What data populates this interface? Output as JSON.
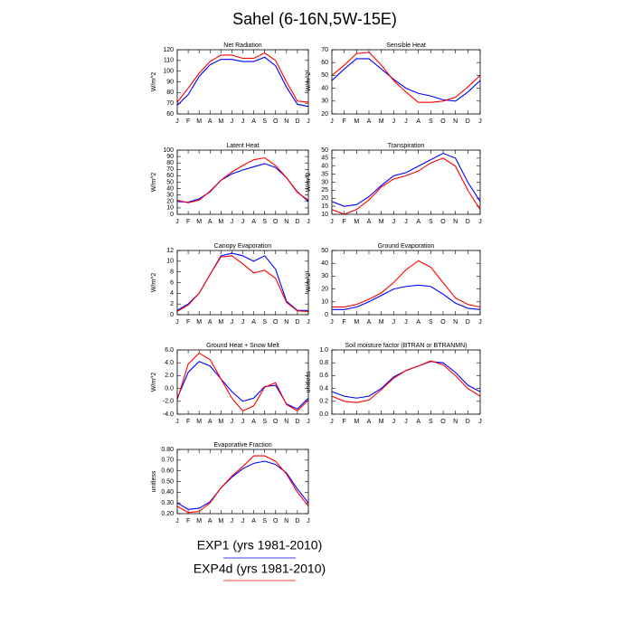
{
  "title": "Sahel (6-16N,5W-15E)",
  "legend": [
    {
      "label": "EXP1 (yrs 1981-2010)",
      "color": "#0000ff"
    },
    {
      "label": "EXP4d (yrs 1981-2010)",
      "color": "#ff0000"
    }
  ],
  "chart_data": [
    {
      "type": "line",
      "title": "Net Radiation",
      "y_label": "W/m^2",
      "categories": [
        "J",
        "F",
        "M",
        "A",
        "M",
        "J",
        "J",
        "A",
        "S",
        "O",
        "N",
        "D",
        "J"
      ],
      "ylim": [
        60,
        120
      ],
      "yticks": [
        60,
        70,
        80,
        90,
        100,
        110,
        120
      ],
      "series": [
        {
          "color": "#0000ff",
          "values": [
            68,
            78,
            95,
            106,
            111,
            111,
            109,
            109,
            113,
            105,
            85,
            69,
            67
          ]
        },
        {
          "color": "#ff0000",
          "values": [
            71,
            84,
            98,
            109,
            115,
            115,
            112,
            112,
            117,
            110,
            90,
            72,
            71
          ]
        }
      ]
    },
    {
      "type": "line",
      "title": "Sensible Heat",
      "y_label": "W/m^2",
      "categories": [
        "J",
        "F",
        "M",
        "A",
        "M",
        "J",
        "J",
        "A",
        "S",
        "O",
        "N",
        "D",
        "J"
      ],
      "ylim": [
        20,
        70
      ],
      "yticks": [
        20,
        30,
        40,
        50,
        60,
        70
      ],
      "series": [
        {
          "color": "#0000ff",
          "values": [
            46,
            55,
            63,
            63,
            55,
            47,
            40,
            36,
            34,
            31,
            30,
            37,
            46
          ]
        },
        {
          "color": "#ff0000",
          "values": [
            50,
            58,
            67,
            68,
            58,
            46,
            37,
            29,
            29,
            30,
            33,
            41,
            50
          ]
        }
      ]
    },
    {
      "type": "line",
      "title": "Latent Heat",
      "y_label": "W/m^2",
      "categories": [
        "J",
        "F",
        "M",
        "A",
        "M",
        "J",
        "J",
        "A",
        "S",
        "O",
        "N",
        "D",
        "J"
      ],
      "ylim": [
        0,
        100
      ],
      "yticks": [
        0,
        10,
        20,
        30,
        40,
        50,
        60,
        70,
        80,
        90,
        100
      ],
      "series": [
        {
          "color": "#0000ff",
          "values": [
            20,
            19,
            24,
            35,
            53,
            63,
            69,
            74,
            79,
            73,
            57,
            35,
            20
          ]
        },
        {
          "color": "#ff0000",
          "values": [
            22,
            18,
            22,
            36,
            53,
            66,
            76,
            85,
            88,
            76,
            57,
            34,
            22
          ]
        }
      ]
    },
    {
      "type": "line",
      "title": "Transpiration",
      "y_label": "W/m^2",
      "categories": [
        "J",
        "F",
        "M",
        "A",
        "M",
        "J",
        "J",
        "A",
        "S",
        "O",
        "N",
        "D",
        "J"
      ],
      "ylim": [
        10,
        50
      ],
      "yticks": [
        10,
        15,
        20,
        25,
        30,
        35,
        40,
        45,
        50
      ],
      "series": [
        {
          "color": "#0000ff",
          "values": [
            18,
            15,
            16,
            21,
            28,
            34,
            36,
            40,
            44,
            48,
            45,
            30,
            18
          ]
        },
        {
          "color": "#ff0000",
          "values": [
            13,
            10,
            13,
            19,
            27,
            32,
            34,
            37,
            42,
            45,
            40,
            25,
            13
          ]
        }
      ]
    },
    {
      "type": "line",
      "title": "Canopy Evaporation",
      "y_label": "W/m^2",
      "categories": [
        "J",
        "F",
        "M",
        "A",
        "M",
        "J",
        "J",
        "A",
        "S",
        "O",
        "N",
        "D",
        "J"
      ],
      "ylim": [
        0,
        12
      ],
      "yticks": [
        0,
        2,
        4,
        6,
        8,
        10,
        12
      ],
      "series": [
        {
          "color": "#0000ff",
          "values": [
            0.8,
            2,
            4,
            7.5,
            11,
            11.5,
            11,
            10,
            11,
            8.5,
            2.5,
            0.8,
            0.8
          ]
        },
        {
          "color": "#ff0000",
          "values": [
            0.6,
            1.8,
            4,
            7.5,
            10.8,
            11,
            9.5,
            7.8,
            8.3,
            6.8,
            2.3,
            0.7,
            0.6
          ]
        }
      ]
    },
    {
      "type": "line",
      "title": "Ground Evaporation",
      "y_label": "W/m^2",
      "categories": [
        "J",
        "F",
        "M",
        "A",
        "M",
        "J",
        "J",
        "A",
        "S",
        "O",
        "N",
        "D",
        "J"
      ],
      "ylim": [
        0,
        50
      ],
      "yticks": [
        0,
        10,
        20,
        30,
        40,
        50
      ],
      "series": [
        {
          "color": "#0000ff",
          "values": [
            4,
            4,
            6,
            10,
            15,
            20,
            22,
            23,
            22,
            16,
            9,
            5,
            4
          ]
        },
        {
          "color": "#ff0000",
          "values": [
            6,
            6,
            8,
            12,
            17,
            25,
            35,
            42,
            37,
            25,
            13,
            8,
            6
          ]
        }
      ]
    },
    {
      "type": "line",
      "title": "Ground Heat + Snow Melt",
      "y_label": "W/m^2",
      "categories": [
        "J",
        "F",
        "M",
        "A",
        "M",
        "J",
        "J",
        "A",
        "S",
        "O",
        "N",
        "D",
        "J"
      ],
      "ylim": [
        -4,
        6
      ],
      "yticks": [
        {
          "value": -4,
          "label": "-4.0"
        },
        {
          "value": -2,
          "label": "-2.0"
        },
        {
          "value": 0,
          "label": "0.0"
        },
        {
          "value": 2,
          "label": "2.0"
        },
        {
          "value": 4,
          "label": "4.0"
        },
        {
          "value": 6,
          "label": "6.0"
        }
      ],
      "series": [
        {
          "color": "#0000ff",
          "values": [
            -1.5,
            2.5,
            4.2,
            3.5,
            1.5,
            -0.5,
            -2,
            -1.5,
            0.3,
            0.5,
            -2.4,
            -3.2,
            -1.5
          ]
        },
        {
          "color": "#ff0000",
          "values": [
            -1.8,
            3.8,
            5.5,
            4.5,
            1.5,
            -1.5,
            -3.5,
            -2.7,
            0.2,
            0.9,
            -2.5,
            -3.5,
            -1.8
          ]
        }
      ]
    },
    {
      "type": "line",
      "title": "Soil moisture factor (BTRAN or BTRANMN)",
      "y_label": "unitless",
      "categories": [
        "J",
        "F",
        "M",
        "A",
        "M",
        "J",
        "J",
        "A",
        "S",
        "O",
        "N",
        "D",
        "J"
      ],
      "ylim": [
        0,
        1
      ],
      "yticks": [
        {
          "value": 0,
          "label": "0.0"
        },
        0.2,
        0.4,
        0.6,
        0.8,
        {
          "value": 1,
          "label": "1.0"
        }
      ],
      "series": [
        {
          "color": "#0000ff",
          "values": [
            0.35,
            0.28,
            0.25,
            0.28,
            0.4,
            0.58,
            0.68,
            0.75,
            0.82,
            0.8,
            0.65,
            0.45,
            0.35
          ]
        },
        {
          "color": "#ff0000",
          "values": [
            0.28,
            0.2,
            0.18,
            0.22,
            0.38,
            0.56,
            0.68,
            0.75,
            0.83,
            0.77,
            0.6,
            0.4,
            0.28
          ]
        }
      ]
    },
    {
      "type": "line",
      "title": "Evaporative Fraction",
      "y_label": "unitless",
      "categories": [
        "J",
        "F",
        "M",
        "A",
        "M",
        "J",
        "J",
        "A",
        "S",
        "O",
        "N",
        "D",
        "J"
      ],
      "ylim": [
        0.2,
        0.8
      ],
      "yticks": [
        {
          "value": 0.2,
          "label": "0.20"
        },
        {
          "value": 0.3,
          "label": "0.30"
        },
        {
          "value": 0.4,
          "label": "0.40"
        },
        {
          "value": 0.5,
          "label": "0.50"
        },
        {
          "value": 0.6,
          "label": "0.60"
        },
        {
          "value": 0.7,
          "label": "0.70"
        },
        {
          "value": 0.8,
          "label": "0.80"
        }
      ],
      "series": [
        {
          "color": "#0000ff",
          "values": [
            0.3,
            0.24,
            0.25,
            0.31,
            0.44,
            0.54,
            0.62,
            0.67,
            0.69,
            0.66,
            0.58,
            0.43,
            0.3
          ]
        },
        {
          "color": "#ff0000",
          "values": [
            0.27,
            0.21,
            0.22,
            0.3,
            0.44,
            0.55,
            0.64,
            0.74,
            0.74,
            0.69,
            0.57,
            0.4,
            0.27
          ]
        }
      ]
    }
  ]
}
